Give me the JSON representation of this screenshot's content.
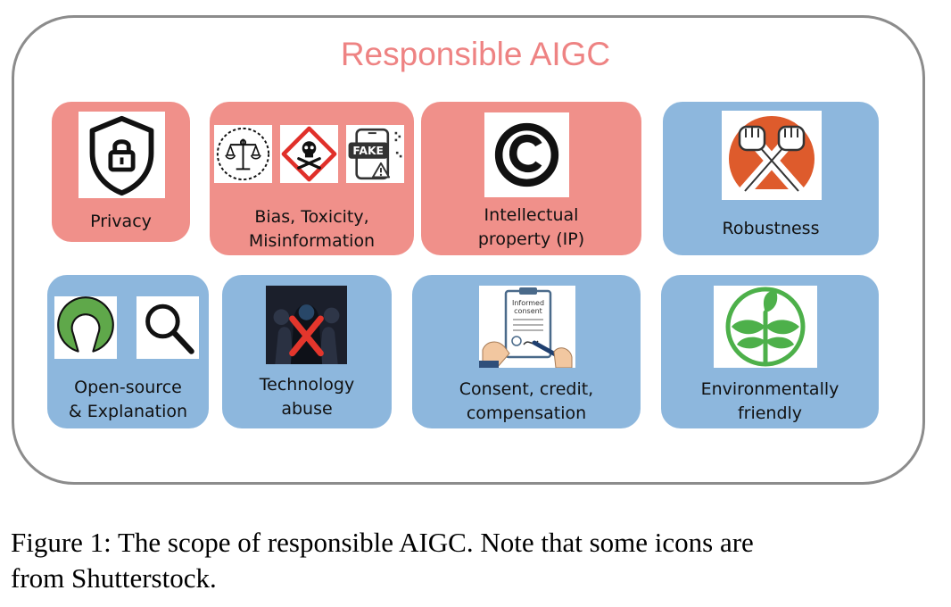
{
  "title": "Responsible AIGC",
  "cards": {
    "privacy": {
      "label_lines": [
        "Privacy"
      ]
    },
    "bias": {
      "label_lines": [
        "Bias, Toxicity,",
        "Misinformation"
      ],
      "fake_text": "FAKE"
    },
    "ip": {
      "label_lines": [
        "Intellectual",
        "property (IP)"
      ]
    },
    "robustness": {
      "label_lines": [
        "Robustness"
      ]
    },
    "opensource": {
      "label_lines": [
        "Open-source",
        "& Explanation"
      ]
    },
    "abuse": {
      "label_lines": [
        "Technology",
        "abuse"
      ]
    },
    "consent": {
      "label_lines": [
        "Consent, credit,",
        "compensation"
      ],
      "doc_text": [
        "Informed",
        "consent"
      ]
    },
    "environment": {
      "label_lines": [
        "Environmentally",
        "friendly"
      ]
    }
  },
  "caption_lines": [
    "Figure 1: The scope of responsible AIGC. Note that some icons are",
    "from Shutterstock."
  ],
  "colors": {
    "title": "#ee8383",
    "red_card": "#f0908a",
    "blue_card": "#8db7dd",
    "frame": "#8c8c8c"
  }
}
